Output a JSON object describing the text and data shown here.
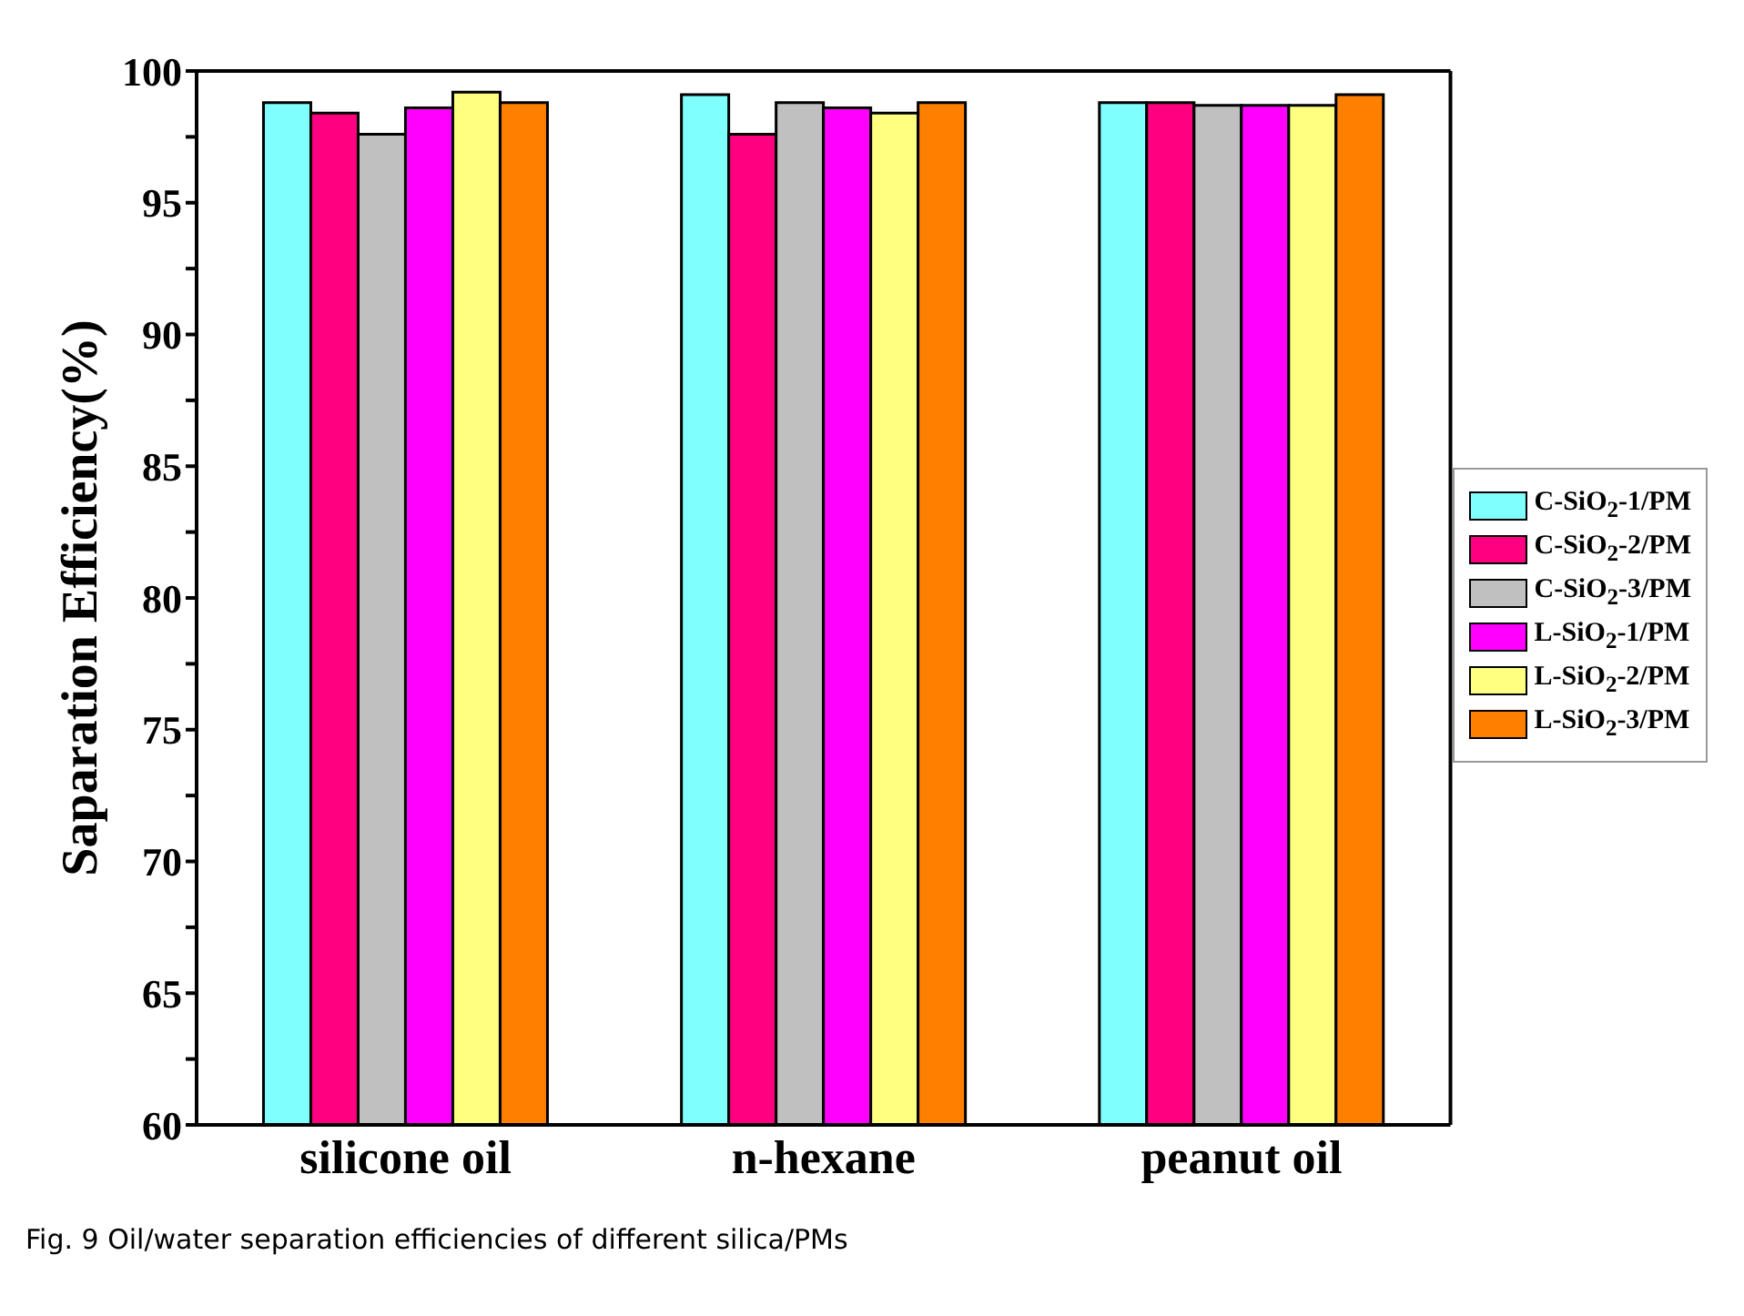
{
  "chart_data": {
    "type": "bar",
    "ylabel": "Saparation Efficiency(%)",
    "categories": [
      "silicone oil",
      "n-hexane",
      "peanut oil"
    ],
    "series": [
      {
        "name": "C-SiO$_{2}$-1/PM",
        "color": "#80ffff",
        "values": [
          98.8,
          99.1,
          98.8
        ]
      },
      {
        "name": "C-SiO$_{2}$-2/PM",
        "color": "#ff0080",
        "values": [
          98.4,
          97.6,
          98.8
        ]
      },
      {
        "name": "C-SiO$_{2}$-3/PM",
        "color": "#c0c0c0",
        "values": [
          97.6,
          98.8,
          98.7
        ]
      },
      {
        "name": "L-SiO$_{2}$-1/PM",
        "color": "#ff00ff",
        "values": [
          98.6,
          98.6,
          98.7
        ]
      },
      {
        "name": "L-SiO$_{2}$-2/PM",
        "color": "#ffff80",
        "values": [
          99.2,
          98.4,
          98.7
        ]
      },
      {
        "name": "L-SiO$_{2}$-3/PM",
        "color": "#ff8000",
        "values": [
          98.8,
          98.8,
          99.1
        ]
      }
    ],
    "ylim": [
      60,
      100
    ],
    "yticks": [
      60,
      {
        "value": 62.5,
        "label": null
      },
      65,
      {
        "value": 67.5,
        "label": null
      },
      70,
      {
        "value": 72.5,
        "label": null
      },
      75,
      {
        "value": 77.5,
        "label": null
      },
      80,
      {
        "value": 82.5,
        "label": null
      },
      85,
      {
        "value": 87.5,
        "label": null
      },
      90,
      {
        "value": 92.5,
        "label": null
      },
      95,
      {
        "value": 97.5,
        "label": null
      },
      100
    ],
    "grid": false,
    "legend": "right",
    "annotations": [
      "Fig. 9 Oil/water separation efficiencies of different silica/PMs"
    ]
  }
}
